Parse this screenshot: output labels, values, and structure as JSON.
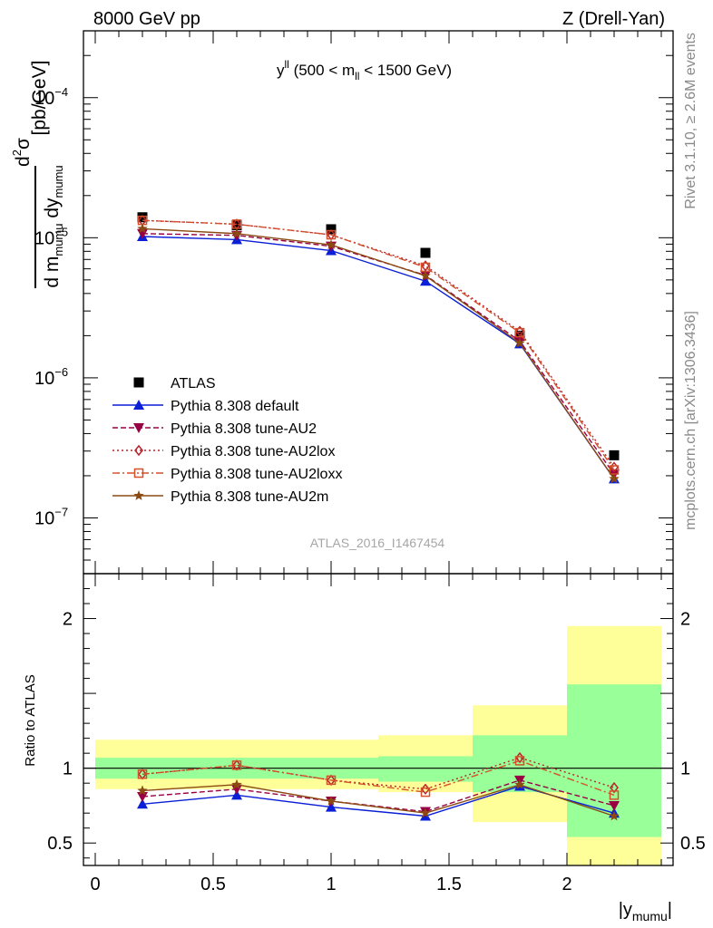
{
  "header": {
    "left": "8000 GeV pp",
    "right": "Z (Drell-Yan)"
  },
  "panel_title": {
    "main": "y",
    "sup": "ll",
    "range_open": " (500 < m",
    "range_sub": "ll",
    "range_close": " < 1500 GeV)"
  },
  "side_labels": {
    "rivet": "Rivet 3.1.10, ≥ 2.6M events",
    "mcplots": "mcplots.cern.ch [arXiv:1306.3436]"
  },
  "analysis_id": "ATLAS_2016_I1467454",
  "chart_data": {
    "type": "line",
    "x_bin_edges": [
      0.0,
      0.4,
      0.8,
      1.2,
      1.6,
      2.0,
      2.4
    ],
    "x": [
      0.2,
      0.6,
      1.0,
      1.4,
      1.8,
      2.2
    ],
    "xlim": [
      -0.05,
      2.45
    ],
    "xlabel": "|y",
    "xlabel_sub": "mumu",
    "xticks": [
      0,
      0.5,
      1,
      1.5,
      2
    ],
    "xtick_labels": [
      "0",
      "0.5",
      "1",
      "1.5",
      "2"
    ],
    "main": {
      "yscale": "log",
      "ylim": [
        4e-08,
        0.0003
      ],
      "ylabel": {
        "numerator": "d",
        "numerator_sup": "2",
        "numerator_sym": "σ",
        "denominator_1": "d m",
        "denominator_1_sub": "mumu",
        "denominator_2": " dy",
        "denominator_2_sub": "mumu",
        "units": "[pb/GeV]"
      },
      "yticks": [
        {
          "value": 1e-07,
          "base": "10",
          "exp": "−7"
        },
        {
          "value": 1e-06,
          "base": "10",
          "exp": "−6"
        },
        {
          "value": 1e-05,
          "base": "10",
          "exp": "−5"
        },
        {
          "value": 0.0001,
          "base": "10",
          "exp": "−4"
        }
      ],
      "series": [
        {
          "name": "ATLAS",
          "kind": "data",
          "color": "#000000",
          "marker": "square",
          "values": [
            1.4e-05,
            1.23e-05,
            1.15e-05,
            7.8e-06,
            2e-06,
            2.8e-07
          ]
        },
        {
          "name": "Pythia 8.308 default",
          "color": "#0a1fd6",
          "dash": "",
          "marker": "triangle-up",
          "values": [
            1.02e-05,
            9.7e-06,
            8.1e-06,
            4.9e-06,
            1.75e-06,
            1.9e-07
          ]
        },
        {
          "name": "Pythia 8.308 tune-AU2",
          "color": "#990044",
          "dash": "6,3",
          "marker": "triangle-down",
          "values": [
            1.07e-05,
            1.04e-05,
            8.7e-06,
            5.4e-06,
            1.83e-06,
            2.05e-07
          ]
        },
        {
          "name": "Pythia 8.308 tune-AU2lox",
          "color": "#b8242c",
          "dash": "2,3",
          "marker": "diamond",
          "values": [
            1.33e-05,
            1.25e-05,
            1.05e-05,
            6.3e-06,
            2.15e-06,
            2.3e-07
          ]
        },
        {
          "name": "Pythia 8.308 tune-AU2loxx",
          "color": "#d4502a",
          "dash": "8,3,2,3",
          "marker": "square-open",
          "values": [
            1.33e-05,
            1.25e-05,
            1.05e-05,
            6.15e-06,
            2.1e-06,
            2.2e-07
          ]
        },
        {
          "name": "Pythia 8.308 tune-AU2m",
          "color": "#8a4a12",
          "dash": "",
          "marker": "star",
          "values": [
            1.16e-05,
            1.07e-05,
            8.9e-06,
            5.35e-06,
            1.77e-06,
            1.9e-07
          ]
        }
      ]
    },
    "ratio": {
      "ylabel": "Ratio to ATLAS",
      "ylim": [
        0.35,
        2.3
      ],
      "yticks": [
        0.5,
        1,
        2
      ],
      "ytick_labels": [
        "0.5",
        "1",
        "2"
      ],
      "bands": {
        "inner_color": "#99ff99",
        "outer_color": "#ffff99",
        "inner": [
          [
            0.93,
            1.07
          ],
          [
            0.93,
            1.07
          ],
          [
            0.93,
            1.07
          ],
          [
            0.91,
            1.08
          ],
          [
            0.84,
            1.22
          ],
          [
            0.54,
            1.56
          ]
        ],
        "outer": [
          [
            0.86,
            1.19
          ],
          [
            0.86,
            1.19
          ],
          [
            0.86,
            1.19
          ],
          [
            0.84,
            1.22
          ],
          [
            0.64,
            1.42
          ],
          [
            0.35,
            1.95
          ]
        ]
      },
      "series_values": [
        [
          0.76,
          0.82,
          0.74,
          0.68,
          0.88,
          0.7
        ],
        [
          0.81,
          0.86,
          0.78,
          0.71,
          0.92,
          0.75
        ],
        [
          0.96,
          1.02,
          0.92,
          0.86,
          1.07,
          0.87
        ],
        [
          0.96,
          1.02,
          0.92,
          0.84,
          1.05,
          0.82
        ],
        [
          0.85,
          0.89,
          0.78,
          0.7,
          0.89,
          0.68
        ]
      ]
    }
  }
}
